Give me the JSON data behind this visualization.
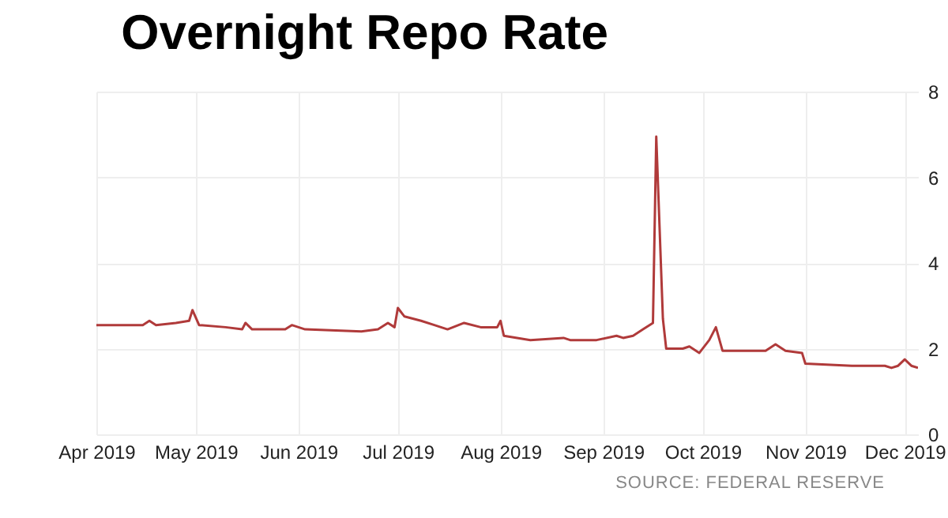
{
  "chart_data": {
    "type": "line",
    "title": "Overnight Repo Rate",
    "annotations": [
      "SOURCE: FEDERAL RESERVE"
    ],
    "x": [
      "2019-04-01",
      "2019-04-15",
      "2019-04-17",
      "2019-04-19",
      "2019-04-25",
      "2019-04-29",
      "2019-04-30",
      "2019-05-02",
      "2019-05-10",
      "2019-05-15",
      "2019-05-16",
      "2019-05-18",
      "2019-05-28",
      "2019-05-30",
      "2019-06-03",
      "2019-06-20",
      "2019-06-25",
      "2019-06-28",
      "2019-06-30",
      "2019-07-01",
      "2019-07-03",
      "2019-07-08",
      "2019-07-12",
      "2019-07-16",
      "2019-07-21",
      "2019-07-26",
      "2019-07-31",
      "2019-08-01",
      "2019-08-02",
      "2019-08-10",
      "2019-08-20",
      "2019-08-22",
      "2019-08-30",
      "2019-09-05",
      "2019-09-07",
      "2019-09-10",
      "2019-09-13",
      "2019-09-16",
      "2019-09-17",
      "2019-09-19",
      "2019-09-20",
      "2019-09-25",
      "2019-09-27",
      "2019-09-30",
      "2019-10-03",
      "2019-10-05",
      "2019-10-07",
      "2019-10-20",
      "2019-10-23",
      "2019-10-26",
      "2019-10-31",
      "2019-11-01",
      "2019-11-15",
      "2019-11-25",
      "2019-11-27",
      "2019-11-29",
      "2019-12-01",
      "2019-12-03",
      "2019-12-05"
    ],
    "series": [
      {
        "color": "#b03a3a",
        "values": [
          2.55,
          2.55,
          2.65,
          2.55,
          2.6,
          2.65,
          2.9,
          2.55,
          2.5,
          2.45,
          2.6,
          2.45,
          2.45,
          2.55,
          2.45,
          2.4,
          2.45,
          2.6,
          2.5,
          2.95,
          2.75,
          2.65,
          2.55,
          2.45,
          2.6,
          2.5,
          2.5,
          2.65,
          2.3,
          2.2,
          2.25,
          2.2,
          2.2,
          2.3,
          2.25,
          2.3,
          2.45,
          2.6,
          6.95,
          2.7,
          2.0,
          2.0,
          2.05,
          1.9,
          2.2,
          2.5,
          1.95,
          1.95,
          2.1,
          1.95,
          1.9,
          1.65,
          1.6,
          1.6,
          1.55,
          1.6,
          1.75,
          1.6,
          1.55
        ]
      }
    ],
    "xlim": [
      "2019-04-01",
      "2019-12-05"
    ],
    "xticks": [
      {
        "value": "2019-04-01",
        "label": "Apr 2019"
      },
      {
        "value": "2019-05-01",
        "label": "May 2019"
      },
      {
        "value": "2019-06-01",
        "label": "Jun 2019"
      },
      {
        "value": "2019-07-01",
        "label": "Jul 2019"
      },
      {
        "value": "2019-08-01",
        "label": "Aug 2019"
      },
      {
        "value": "2019-09-01",
        "label": "Sep 2019"
      },
      {
        "value": "2019-10-01",
        "label": "Oct 2019"
      },
      {
        "value": "2019-11-01",
        "label": "Nov 2019"
      },
      {
        "value": "2019-12-01",
        "label": "Dec 2019"
      }
    ],
    "ylim": [
      0,
      8
    ],
    "yticks": [
      0,
      2,
      4,
      6,
      8
    ],
    "grid": true
  }
}
